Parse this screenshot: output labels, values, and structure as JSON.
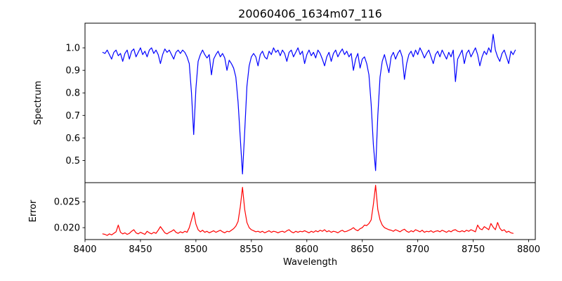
{
  "figure": {
    "title": "20060406_1634m07_116",
    "background_color": "#ffffff",
    "axis_color": "#000000"
  },
  "chart_data": [
    {
      "type": "line",
      "name": "spectrum",
      "title": "20060406_1634m07_116",
      "ylabel": "Spectrum",
      "line_color": "#0000ff",
      "grid": false,
      "legend": null,
      "xlim": [
        8400,
        8806
      ],
      "ylim": [
        0.4016,
        1.1094
      ],
      "yticks": [
        {
          "v": 1.0,
          "label": "1.0"
        },
        {
          "v": 0.9,
          "label": "0.9"
        },
        {
          "v": 0.8,
          "label": "0.8"
        },
        {
          "v": 0.7,
          "label": "0.7"
        },
        {
          "v": 0.6,
          "label": "0.6"
        },
        {
          "v": 0.5,
          "label": "0.5"
        }
      ],
      "xticks": [],
      "x_start": 8416,
      "x_step": 2,
      "y": [
        0.98,
        0.975,
        0.99,
        0.97,
        0.95,
        0.98,
        0.99,
        0.965,
        0.975,
        0.94,
        0.975,
        0.99,
        0.95,
        0.985,
        0.995,
        0.96,
        0.98,
        1.0,
        0.97,
        0.985,
        0.96,
        0.99,
        1.0,
        0.975,
        0.99,
        0.97,
        0.93,
        0.97,
        0.995,
        0.98,
        0.99,
        0.97,
        0.95,
        0.98,
        0.99,
        0.975,
        0.99,
        0.98,
        0.96,
        0.93,
        0.8,
        0.615,
        0.82,
        0.94,
        0.97,
        0.99,
        0.97,
        0.955,
        0.97,
        0.88,
        0.95,
        0.97,
        0.985,
        0.96,
        0.975,
        0.955,
        0.9,
        0.945,
        0.93,
        0.91,
        0.87,
        0.76,
        0.6,
        0.44,
        0.63,
        0.83,
        0.92,
        0.96,
        0.975,
        0.96,
        0.92,
        0.97,
        0.985,
        0.96,
        0.95,
        0.985,
        0.97,
        1.0,
        0.98,
        0.99,
        0.965,
        0.99,
        0.975,
        0.94,
        0.98,
        0.99,
        0.96,
        0.98,
        1.0,
        0.97,
        0.985,
        0.93,
        0.97,
        0.99,
        0.965,
        0.98,
        0.955,
        0.99,
        0.975,
        0.95,
        0.92,
        0.96,
        0.98,
        0.94,
        0.975,
        0.99,
        0.96,
        0.98,
        0.995,
        0.97,
        0.985,
        0.96,
        0.975,
        0.9,
        0.95,
        0.975,
        0.91,
        0.95,
        0.96,
        0.93,
        0.88,
        0.75,
        0.57,
        0.455,
        0.7,
        0.87,
        0.94,
        0.97,
        0.93,
        0.89,
        0.96,
        0.98,
        0.95,
        0.975,
        0.99,
        0.96,
        0.86,
        0.93,
        0.97,
        0.985,
        0.96,
        0.99,
        0.97,
        1.0,
        0.98,
        0.955,
        0.975,
        0.99,
        0.96,
        0.93,
        0.97,
        0.985,
        0.96,
        0.99,
        0.97,
        0.95,
        0.98,
        0.96,
        0.99,
        0.85,
        0.95,
        0.97,
        0.99,
        0.93,
        0.975,
        0.99,
        0.96,
        0.98,
        1.0,
        0.97,
        0.92,
        0.96,
        0.985,
        0.97,
        1.0,
        0.98,
        1.06,
        0.99,
        0.96,
        0.94,
        0.975,
        0.99,
        0.96,
        0.93,
        0.985,
        0.97,
        0.99
      ]
    },
    {
      "type": "line",
      "name": "error",
      "ylabel": "Error",
      "xlabel": "Wavelength",
      "line_color": "#ff0000",
      "grid": false,
      "legend": null,
      "xlim": [
        8400,
        8806
      ],
      "ylim": [
        0.0177,
        0.0287
      ],
      "yticks": [
        {
          "v": 0.025,
          "label": "0.025"
        },
        {
          "v": 0.02,
          "label": "0.020"
        }
      ],
      "xticks": [
        {
          "v": 8400,
          "label": "8400"
        },
        {
          "v": 8450,
          "label": "8450"
        },
        {
          "v": 8500,
          "label": "8500"
        },
        {
          "v": 8550,
          "label": "8550"
        },
        {
          "v": 8600,
          "label": "8600"
        },
        {
          "v": 8650,
          "label": "8650"
        },
        {
          "v": 8700,
          "label": "8700"
        },
        {
          "v": 8750,
          "label": "8750"
        },
        {
          "v": 8800,
          "label": "8800"
        }
      ],
      "x_start": 8416,
      "x_step": 2,
      "y": [
        0.0188,
        0.0187,
        0.0185,
        0.0188,
        0.0186,
        0.0189,
        0.0192,
        0.0205,
        0.0191,
        0.0188,
        0.019,
        0.0187,
        0.0189,
        0.0193,
        0.0196,
        0.019,
        0.0188,
        0.0191,
        0.0189,
        0.0187,
        0.0193,
        0.019,
        0.0188,
        0.0191,
        0.0189,
        0.0195,
        0.0202,
        0.0196,
        0.019,
        0.0188,
        0.0191,
        0.0193,
        0.0196,
        0.0191,
        0.0189,
        0.0192,
        0.019,
        0.0193,
        0.0191,
        0.02,
        0.0215,
        0.023,
        0.0207,
        0.0196,
        0.0192,
        0.0195,
        0.0191,
        0.0193,
        0.019,
        0.0192,
        0.0194,
        0.0191,
        0.0193,
        0.0195,
        0.0192,
        0.019,
        0.0193,
        0.0192,
        0.0195,
        0.0198,
        0.0203,
        0.0212,
        0.024,
        0.0278,
        0.0235,
        0.021,
        0.02,
        0.0196,
        0.0194,
        0.0192,
        0.0193,
        0.0191,
        0.0193,
        0.019,
        0.0192,
        0.0194,
        0.0191,
        0.0193,
        0.0192,
        0.019,
        0.0192,
        0.0193,
        0.0191,
        0.0194,
        0.0196,
        0.0192,
        0.019,
        0.0193,
        0.0191,
        0.0193,
        0.0192,
        0.0194,
        0.0192,
        0.019,
        0.0193,
        0.0191,
        0.0194,
        0.0192,
        0.0195,
        0.0193,
        0.0196,
        0.0192,
        0.0194,
        0.0191,
        0.0193,
        0.0192,
        0.019,
        0.0193,
        0.0195,
        0.0192,
        0.0193,
        0.0195,
        0.0197,
        0.02,
        0.0196,
        0.0194,
        0.0198,
        0.02,
        0.0205,
        0.0204,
        0.0208,
        0.0215,
        0.0245,
        0.0282,
        0.0235,
        0.0215,
        0.0205,
        0.02,
        0.0198,
        0.0196,
        0.0195,
        0.0193,
        0.0196,
        0.0194,
        0.0192,
        0.0195,
        0.0197,
        0.0193,
        0.0191,
        0.0194,
        0.0192,
        0.0196,
        0.0194,
        0.0192,
        0.0195,
        0.0191,
        0.0193,
        0.0192,
        0.0194,
        0.0191,
        0.0193,
        0.0194,
        0.0192,
        0.0195,
        0.0193,
        0.0191,
        0.0194,
        0.0192,
        0.0195,
        0.0196,
        0.0193,
        0.0192,
        0.0194,
        0.0192,
        0.0195,
        0.0193,
        0.0196,
        0.0194,
        0.0192,
        0.0205,
        0.0198,
        0.0196,
        0.0202,
        0.0199,
        0.0196,
        0.0208,
        0.0201,
        0.0196,
        0.021,
        0.0199,
        0.0194,
        0.0196,
        0.0191,
        0.0193,
        0.019,
        0.0189
      ]
    }
  ]
}
